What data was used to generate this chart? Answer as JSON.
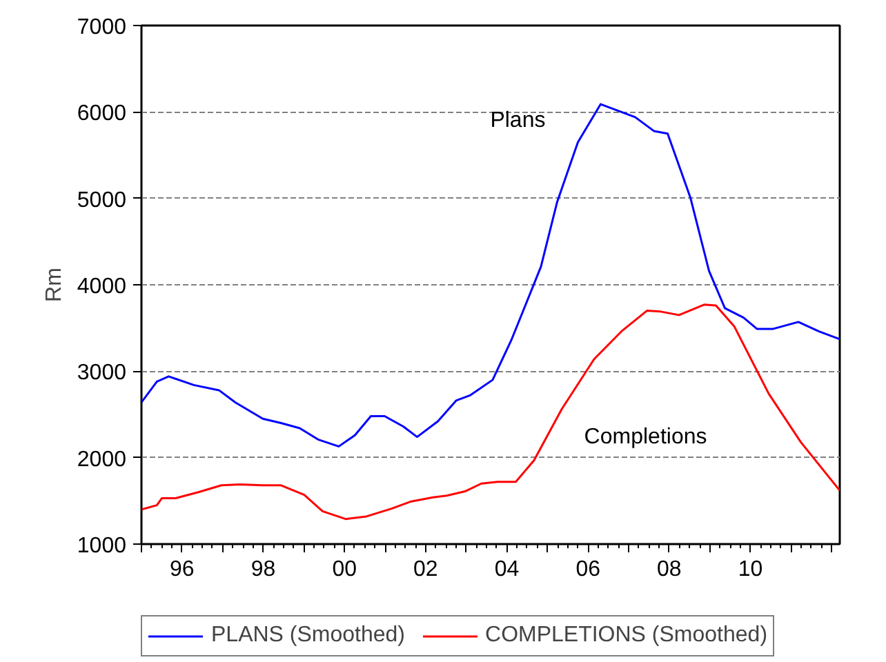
{
  "chart_data": {
    "type": "line",
    "ylabel": "Rm",
    "xlim": [
      1995,
      2012.2
    ],
    "ylim": [
      1000,
      7000
    ],
    "yticks": [
      1000,
      2000,
      3000,
      4000,
      5000,
      6000,
      7000
    ],
    "xticks": [
      {
        "value": 1995,
        "label": null
      },
      {
        "value": 1996,
        "label": "96"
      },
      {
        "value": 1997,
        "label": null
      },
      {
        "value": 1998,
        "label": "98"
      },
      {
        "value": 1999,
        "label": null
      },
      {
        "value": 2000,
        "label": "00"
      },
      {
        "value": 2001,
        "label": null
      },
      {
        "value": 2002,
        "label": "02"
      },
      {
        "value": 2003,
        "label": null
      },
      {
        "value": 2004,
        "label": "04"
      },
      {
        "value": 2005,
        "label": null
      },
      {
        "value": 2006,
        "label": "06"
      },
      {
        "value": 2007,
        "label": null
      },
      {
        "value": 2008,
        "label": "08"
      },
      {
        "value": 2009,
        "label": null
      },
      {
        "value": 2010,
        "label": "10"
      },
      {
        "value": 2011,
        "label": null
      },
      {
        "value": 2012,
        "label": null
      }
    ],
    "grid": "y",
    "legend": "bottom",
    "line_style": "solid",
    "series": [
      {
        "name": "PLANS (Smoothed)",
        "color": "#0000ff",
        "x": [
          1995.0,
          1995.38,
          1995.67,
          1996.29,
          1996.91,
          1997.31,
          1997.99,
          1998.44,
          1998.9,
          1999.35,
          1999.86,
          2000.26,
          2000.65,
          2000.99,
          2001.45,
          2001.79,
          2002.3,
          2002.75,
          2003.09,
          2003.65,
          2004.11,
          2004.84,
          2005.24,
          2005.75,
          2006.31,
          2007.16,
          2007.62,
          2007.96,
          2008.52,
          2008.98,
          2009.37,
          2009.83,
          2010.16,
          2010.56,
          2011.18,
          2011.69,
          2012.2
        ],
        "values": [
          2640,
          2880,
          2940,
          2840,
          2780,
          2640,
          2450,
          2400,
          2340,
          2210,
          2130,
          2260,
          2480,
          2480,
          2360,
          2240,
          2420,
          2660,
          2720,
          2900,
          3360,
          4210,
          4960,
          5650,
          6090,
          5940,
          5780,
          5750,
          5010,
          4160,
          3730,
          3620,
          3490,
          3490,
          3570,
          3460,
          3370
        ]
      },
      {
        "name": "COMPLETIONS (Smoothed)",
        "color": "#ff0000",
        "x": [
          1995.0,
          1995.38,
          1995.5,
          1995.84,
          1996.4,
          1996.97,
          1997.42,
          1997.99,
          1998.44,
          1999.01,
          1999.46,
          2000.03,
          2000.54,
          2001.16,
          2001.62,
          2002.18,
          2002.52,
          2002.97,
          2003.37,
          2003.77,
          2004.22,
          2004.67,
          2005.35,
          2006.15,
          2006.82,
          2007.45,
          2007.79,
          2008.24,
          2008.86,
          2009.15,
          2009.6,
          2010.45,
          2011.24,
          2012.2
        ],
        "values": [
          1400,
          1450,
          1530,
          1530,
          1600,
          1680,
          1690,
          1680,
          1680,
          1570,
          1380,
          1290,
          1320,
          1410,
          1490,
          1540,
          1560,
          1610,
          1700,
          1720,
          1720,
          1970,
          2560,
          3140,
          3460,
          3700,
          3690,
          3650,
          3770,
          3760,
          3520,
          2740,
          2180,
          1620
        ]
      }
    ],
    "annotations": [
      "Plans",
      "Completions"
    ]
  }
}
